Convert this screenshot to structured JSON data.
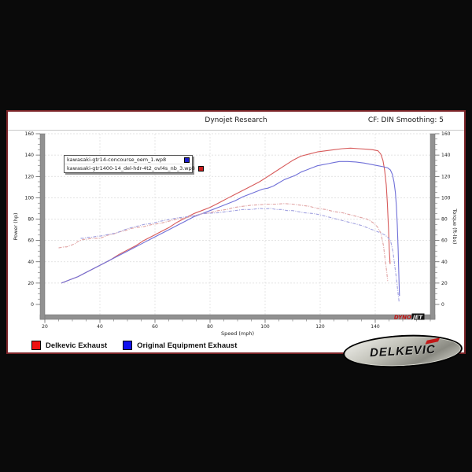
{
  "header": {
    "title": "Dynojet Research",
    "smoothing": "CF: DIN Smoothing: 5"
  },
  "run_legend": {
    "rows": [
      {
        "label": "kawasaki-gtr14-concourse_oem_1.wp8",
        "color": "#1d1dcc"
      },
      {
        "label": "kawasaki-gtr1400-14_del-hdr-4t2_ovl4s_nb_3.wp8",
        "color": "#cc1d1d"
      }
    ]
  },
  "watermark": {
    "part1": "DYNO",
    "part2": "JET",
    "part1_color": "#c41414",
    "part2_color": "#f2f2f2",
    "chip_color": "#111111"
  },
  "bottom_legend": {
    "items": [
      {
        "label": "Delkevic Exhaust",
        "color": "#ee1111"
      },
      {
        "label": "Original Equipment Exhaust",
        "color": "#1111ee"
      }
    ]
  },
  "logo": {
    "text": "DELKEVIC"
  },
  "colors": {
    "frame": "#7c2428",
    "axis_bar": "#919191",
    "grid": "#dadada",
    "page_bg": "#0a0a0a"
  },
  "chart_data": {
    "type": "line",
    "title": "Dynojet Research",
    "xlabel": "Speed (mph)",
    "ylabel_left": "Power (hp)",
    "ylabel_right": "Torque (ft-lbs)",
    "xlim": [
      20,
      160
    ],
    "ylim": [
      0,
      160
    ],
    "x_ticks": [
      20,
      40,
      60,
      80,
      100,
      120,
      140
    ],
    "y_ticks": [
      0,
      20,
      40,
      60,
      80,
      100,
      120,
      140,
      160
    ],
    "minor_step": 5,
    "grid": true,
    "legend_position": "upper-left-box",
    "series": [
      {
        "name": "kawasaki-gtr1400-14_del-hdr-4t2_ovl4s_nb_3.wp8",
        "label": "Delkevic Exhaust",
        "measure": "power",
        "axis": "left",
        "color": "#d75a5a",
        "style": "solid",
        "points": [
          [
            26,
            20
          ],
          [
            29,
            23
          ],
          [
            32,
            26
          ],
          [
            35,
            30
          ],
          [
            38,
            34
          ],
          [
            41,
            38
          ],
          [
            44,
            42
          ],
          [
            47,
            47
          ],
          [
            50,
            51
          ],
          [
            53,
            55
          ],
          [
            56,
            60
          ],
          [
            59,
            64
          ],
          [
            62,
            68
          ],
          [
            65,
            72
          ],
          [
            68,
            77
          ],
          [
            71,
            81
          ],
          [
            74,
            85
          ],
          [
            77,
            88
          ],
          [
            80,
            91
          ],
          [
            83,
            95
          ],
          [
            86,
            99
          ],
          [
            89,
            103
          ],
          [
            92,
            107
          ],
          [
            95,
            111
          ],
          [
            98,
            115
          ],
          [
            101,
            120
          ],
          [
            104,
            125
          ],
          [
            107,
            130
          ],
          [
            110,
            135
          ],
          [
            113,
            139
          ],
          [
            116,
            141
          ],
          [
            119,
            143
          ],
          [
            122,
            144
          ],
          [
            125,
            145
          ],
          [
            128,
            146
          ],
          [
            131,
            146.5
          ],
          [
            134,
            146
          ],
          [
            137,
            145.5
          ],
          [
            139,
            145
          ],
          [
            141,
            144
          ],
          [
            142,
            141
          ],
          [
            142.8,
            135
          ],
          [
            143.4,
            126
          ],
          [
            144,
            112
          ],
          [
            144.4,
            95
          ],
          [
            144.8,
            72
          ],
          [
            145.1,
            52
          ],
          [
            145.4,
            38
          ]
        ]
      },
      {
        "name": "kawasaki-gtr14-concourse_oem_1.wp8",
        "label": "Original Equipment Exhaust",
        "measure": "power",
        "axis": "left",
        "color": "#7070d8",
        "style": "solid",
        "points": [
          [
            26,
            20
          ],
          [
            29,
            23
          ],
          [
            32,
            26
          ],
          [
            35,
            30
          ],
          [
            38,
            34
          ],
          [
            41,
            38
          ],
          [
            44,
            42
          ],
          [
            47,
            46
          ],
          [
            50,
            50
          ],
          [
            53,
            54
          ],
          [
            56,
            58
          ],
          [
            59,
            62
          ],
          [
            62,
            66
          ],
          [
            65,
            70
          ],
          [
            68,
            74
          ],
          [
            71,
            78
          ],
          [
            74,
            82
          ],
          [
            77,
            85
          ],
          [
            80,
            88
          ],
          [
            83,
            91
          ],
          [
            86,
            94
          ],
          [
            89,
            97
          ],
          [
            92,
            101
          ],
          [
            95,
            104
          ],
          [
            97,
            106
          ],
          [
            99,
            108
          ],
          [
            101,
            109
          ],
          [
            103,
            111
          ],
          [
            105,
            114
          ],
          [
            107,
            117
          ],
          [
            109,
            119
          ],
          [
            111,
            121
          ],
          [
            113,
            124
          ],
          [
            115,
            126
          ],
          [
            117,
            128
          ],
          [
            119,
            130
          ],
          [
            121,
            131
          ],
          [
            123,
            132
          ],
          [
            125,
            133
          ],
          [
            127,
            134
          ],
          [
            130,
            134
          ],
          [
            133,
            133.5
          ],
          [
            136,
            132.5
          ],
          [
            139,
            131
          ],
          [
            141,
            130
          ],
          [
            143,
            129
          ],
          [
            144.5,
            128
          ],
          [
            145.5,
            126
          ],
          [
            146.2,
            122
          ],
          [
            146.8,
            115
          ],
          [
            147.3,
            105
          ],
          [
            147.7,
            92
          ],
          [
            148,
            75
          ],
          [
            148.3,
            52
          ],
          [
            148.6,
            25
          ],
          [
            148.8,
            8
          ]
        ]
      },
      {
        "name": "kawasaki-gtr1400-14_del-hdr-4t2_ovl4s_nb_3.wp8",
        "label": "Delkevic Exhaust",
        "measure": "torque",
        "axis": "right",
        "color": "#e0a2a2",
        "style": "dashdot",
        "points": [
          [
            25,
            53
          ],
          [
            26,
            53.5
          ],
          [
            27,
            54
          ],
          [
            28,
            54
          ],
          [
            29,
            55
          ],
          [
            30,
            56
          ],
          [
            31,
            57
          ],
          [
            32,
            59
          ],
          [
            33,
            60
          ],
          [
            34,
            61
          ],
          [
            35,
            61
          ],
          [
            36,
            61.5
          ],
          [
            37,
            62
          ],
          [
            38,
            62
          ],
          [
            39,
            62
          ],
          [
            40,
            62
          ],
          [
            41,
            63
          ],
          [
            43,
            65
          ],
          [
            45,
            66
          ],
          [
            47,
            68
          ],
          [
            49,
            69
          ],
          [
            51,
            71
          ],
          [
            53,
            72
          ],
          [
            56,
            73
          ],
          [
            59,
            75
          ],
          [
            62,
            76
          ],
          [
            65,
            78
          ],
          [
            68,
            80
          ],
          [
            71,
            81
          ],
          [
            74,
            83
          ],
          [
            77,
            85
          ],
          [
            80,
            86
          ],
          [
            83,
            88
          ],
          [
            86,
            89
          ],
          [
            89,
            91
          ],
          [
            92,
            92
          ],
          [
            95,
            93
          ],
          [
            98,
            93.5
          ],
          [
            101,
            94
          ],
          [
            104,
            94
          ],
          [
            107,
            94.5
          ],
          [
            110,
            94
          ],
          [
            113,
            93
          ],
          [
            116,
            92
          ],
          [
            119,
            90
          ],
          [
            122,
            89
          ],
          [
            125,
            87
          ],
          [
            128,
            86
          ],
          [
            131,
            84
          ],
          [
            134,
            82
          ],
          [
            137,
            80
          ],
          [
            139,
            77
          ],
          [
            140,
            75
          ],
          [
            141,
            72
          ],
          [
            142,
            67
          ],
          [
            143,
            55
          ],
          [
            143.6,
            42
          ],
          [
            144.2,
            30
          ],
          [
            144.5,
            22
          ]
        ]
      },
      {
        "name": "kawasaki-gtr14-concourse_oem_1.wp8",
        "label": "Original Equipment Exhaust",
        "measure": "torque",
        "axis": "right",
        "color": "#a2a2e0",
        "style": "dashdot",
        "points": [
          [
            33,
            62
          ],
          [
            34,
            62
          ],
          [
            35,
            62.5
          ],
          [
            36,
            63
          ],
          [
            37,
            63
          ],
          [
            38,
            63.5
          ],
          [
            39,
            64
          ],
          [
            40,
            64
          ],
          [
            42,
            65
          ],
          [
            44,
            66
          ],
          [
            46,
            67
          ],
          [
            48,
            69
          ],
          [
            50,
            71
          ],
          [
            53,
            73
          ],
          [
            56,
            75
          ],
          [
            59,
            76
          ],
          [
            62,
            78
          ],
          [
            65,
            79.5
          ],
          [
            68,
            81
          ],
          [
            71,
            82
          ],
          [
            74,
            83
          ],
          [
            77,
            85
          ],
          [
            80,
            85.5
          ],
          [
            83,
            86
          ],
          [
            86,
            87
          ],
          [
            89,
            88
          ],
          [
            92,
            89
          ],
          [
            95,
            89
          ],
          [
            98,
            90
          ],
          [
            100,
            89.5
          ],
          [
            102,
            90
          ],
          [
            104,
            89
          ],
          [
            106,
            89
          ],
          [
            108,
            88
          ],
          [
            110,
            88
          ],
          [
            112,
            87
          ],
          [
            114,
            86
          ],
          [
            116,
            85.5
          ],
          [
            118,
            85
          ],
          [
            120,
            84
          ],
          [
            123,
            82
          ],
          [
            126,
            80
          ],
          [
            129,
            78
          ],
          [
            132,
            76
          ],
          [
            135,
            74
          ],
          [
            138,
            71
          ],
          [
            140,
            69
          ],
          [
            142,
            67
          ],
          [
            143.5,
            65
          ],
          [
            144.5,
            63
          ],
          [
            145.5,
            60
          ],
          [
            146,
            55
          ],
          [
            146.5,
            48
          ],
          [
            147,
            38
          ],
          [
            147.5,
            28
          ],
          [
            148,
            17
          ],
          [
            148.4,
            8
          ],
          [
            148.7,
            2
          ]
        ]
      }
    ]
  }
}
